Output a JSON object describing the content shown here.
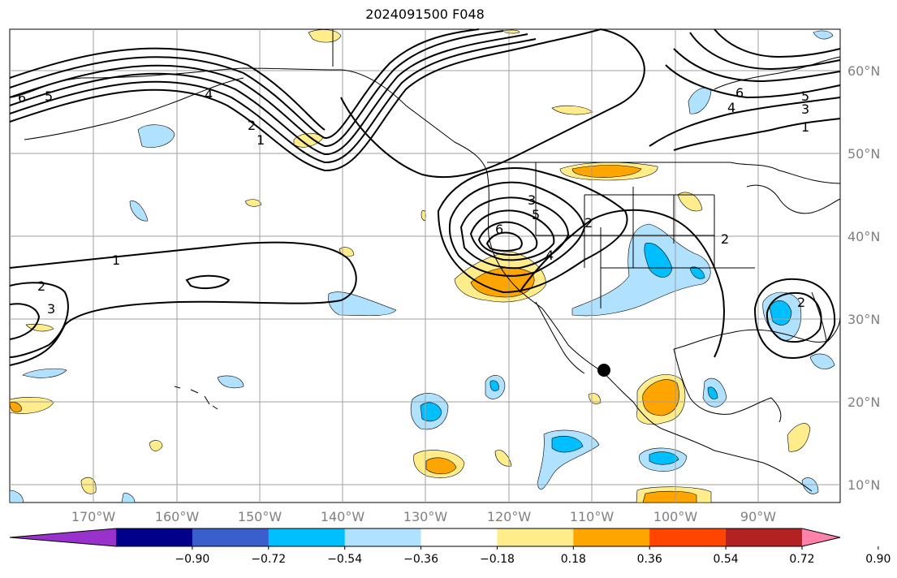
{
  "title": "2024091500 F048",
  "lon_ticks": [
    "170°W",
    "160°W",
    "150°W",
    "140°W",
    "130°W",
    "120°W",
    "110°W",
    "100°W",
    "90°W"
  ],
  "lat_ticks": [
    "60°N",
    "50°N",
    "40°N",
    "30°N",
    "20°N",
    "10°N"
  ],
  "colorbar": {
    "colors": [
      "#9932cc",
      "#00008b",
      "#3a5fcd",
      "#00bfff",
      "#b0e2ff",
      "#ffffff",
      "#ffec8b",
      "#ffa500",
      "#ff4500",
      "#b22222",
      "#ff82ab"
    ],
    "labels": [
      "−0.90",
      "−0.72",
      "−0.54",
      "−0.36",
      "−0.18",
      "0.18",
      "0.36",
      "0.54",
      "0.72",
      "0.90"
    ]
  },
  "contour_labels": {
    "pac_6": "6",
    "pac_5": "5",
    "pac_4": "4",
    "pac_2": "2",
    "pac_1": "1",
    "mid_1": "1",
    "mid_2": "2",
    "mid_3": "3",
    "low_6": "6",
    "low_5": "5",
    "low_4": "4",
    "low_3": "3",
    "low_2": "2",
    "ne_6": "6",
    "ne_5": "5",
    "ne_4": "4",
    "ne_3": "3",
    "ne_1": "1",
    "gulf_2": "2",
    "east_2": "2"
  },
  "marker": "black-dot"
}
